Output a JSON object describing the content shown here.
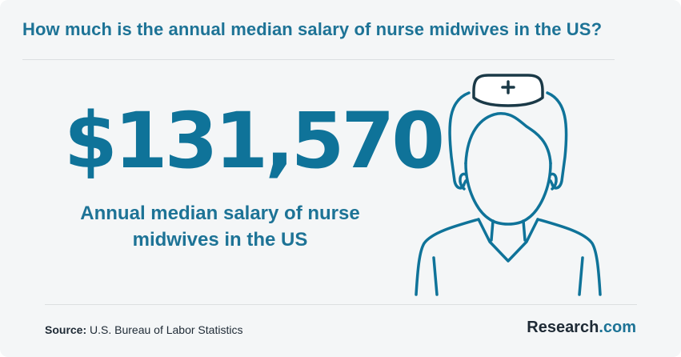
{
  "headline": "How much is the annual median salary of nurse midwives in the US?",
  "stat": {
    "value": "$131,570",
    "caption": "Annual median salary of nurse midwives in the US"
  },
  "footer": {
    "source_label": "Source:",
    "source_text": "U.S. Bureau of Labor Statistics",
    "brand_name": "Research",
    "brand_tld": ".com"
  },
  "colors": {
    "accent": "#1d7396",
    "number": "#0f7399",
    "background": "#f4f6f7",
    "text_dark": "#1e2a35"
  },
  "icons": [
    "nurse-icon",
    "medical-cross-icon"
  ]
}
